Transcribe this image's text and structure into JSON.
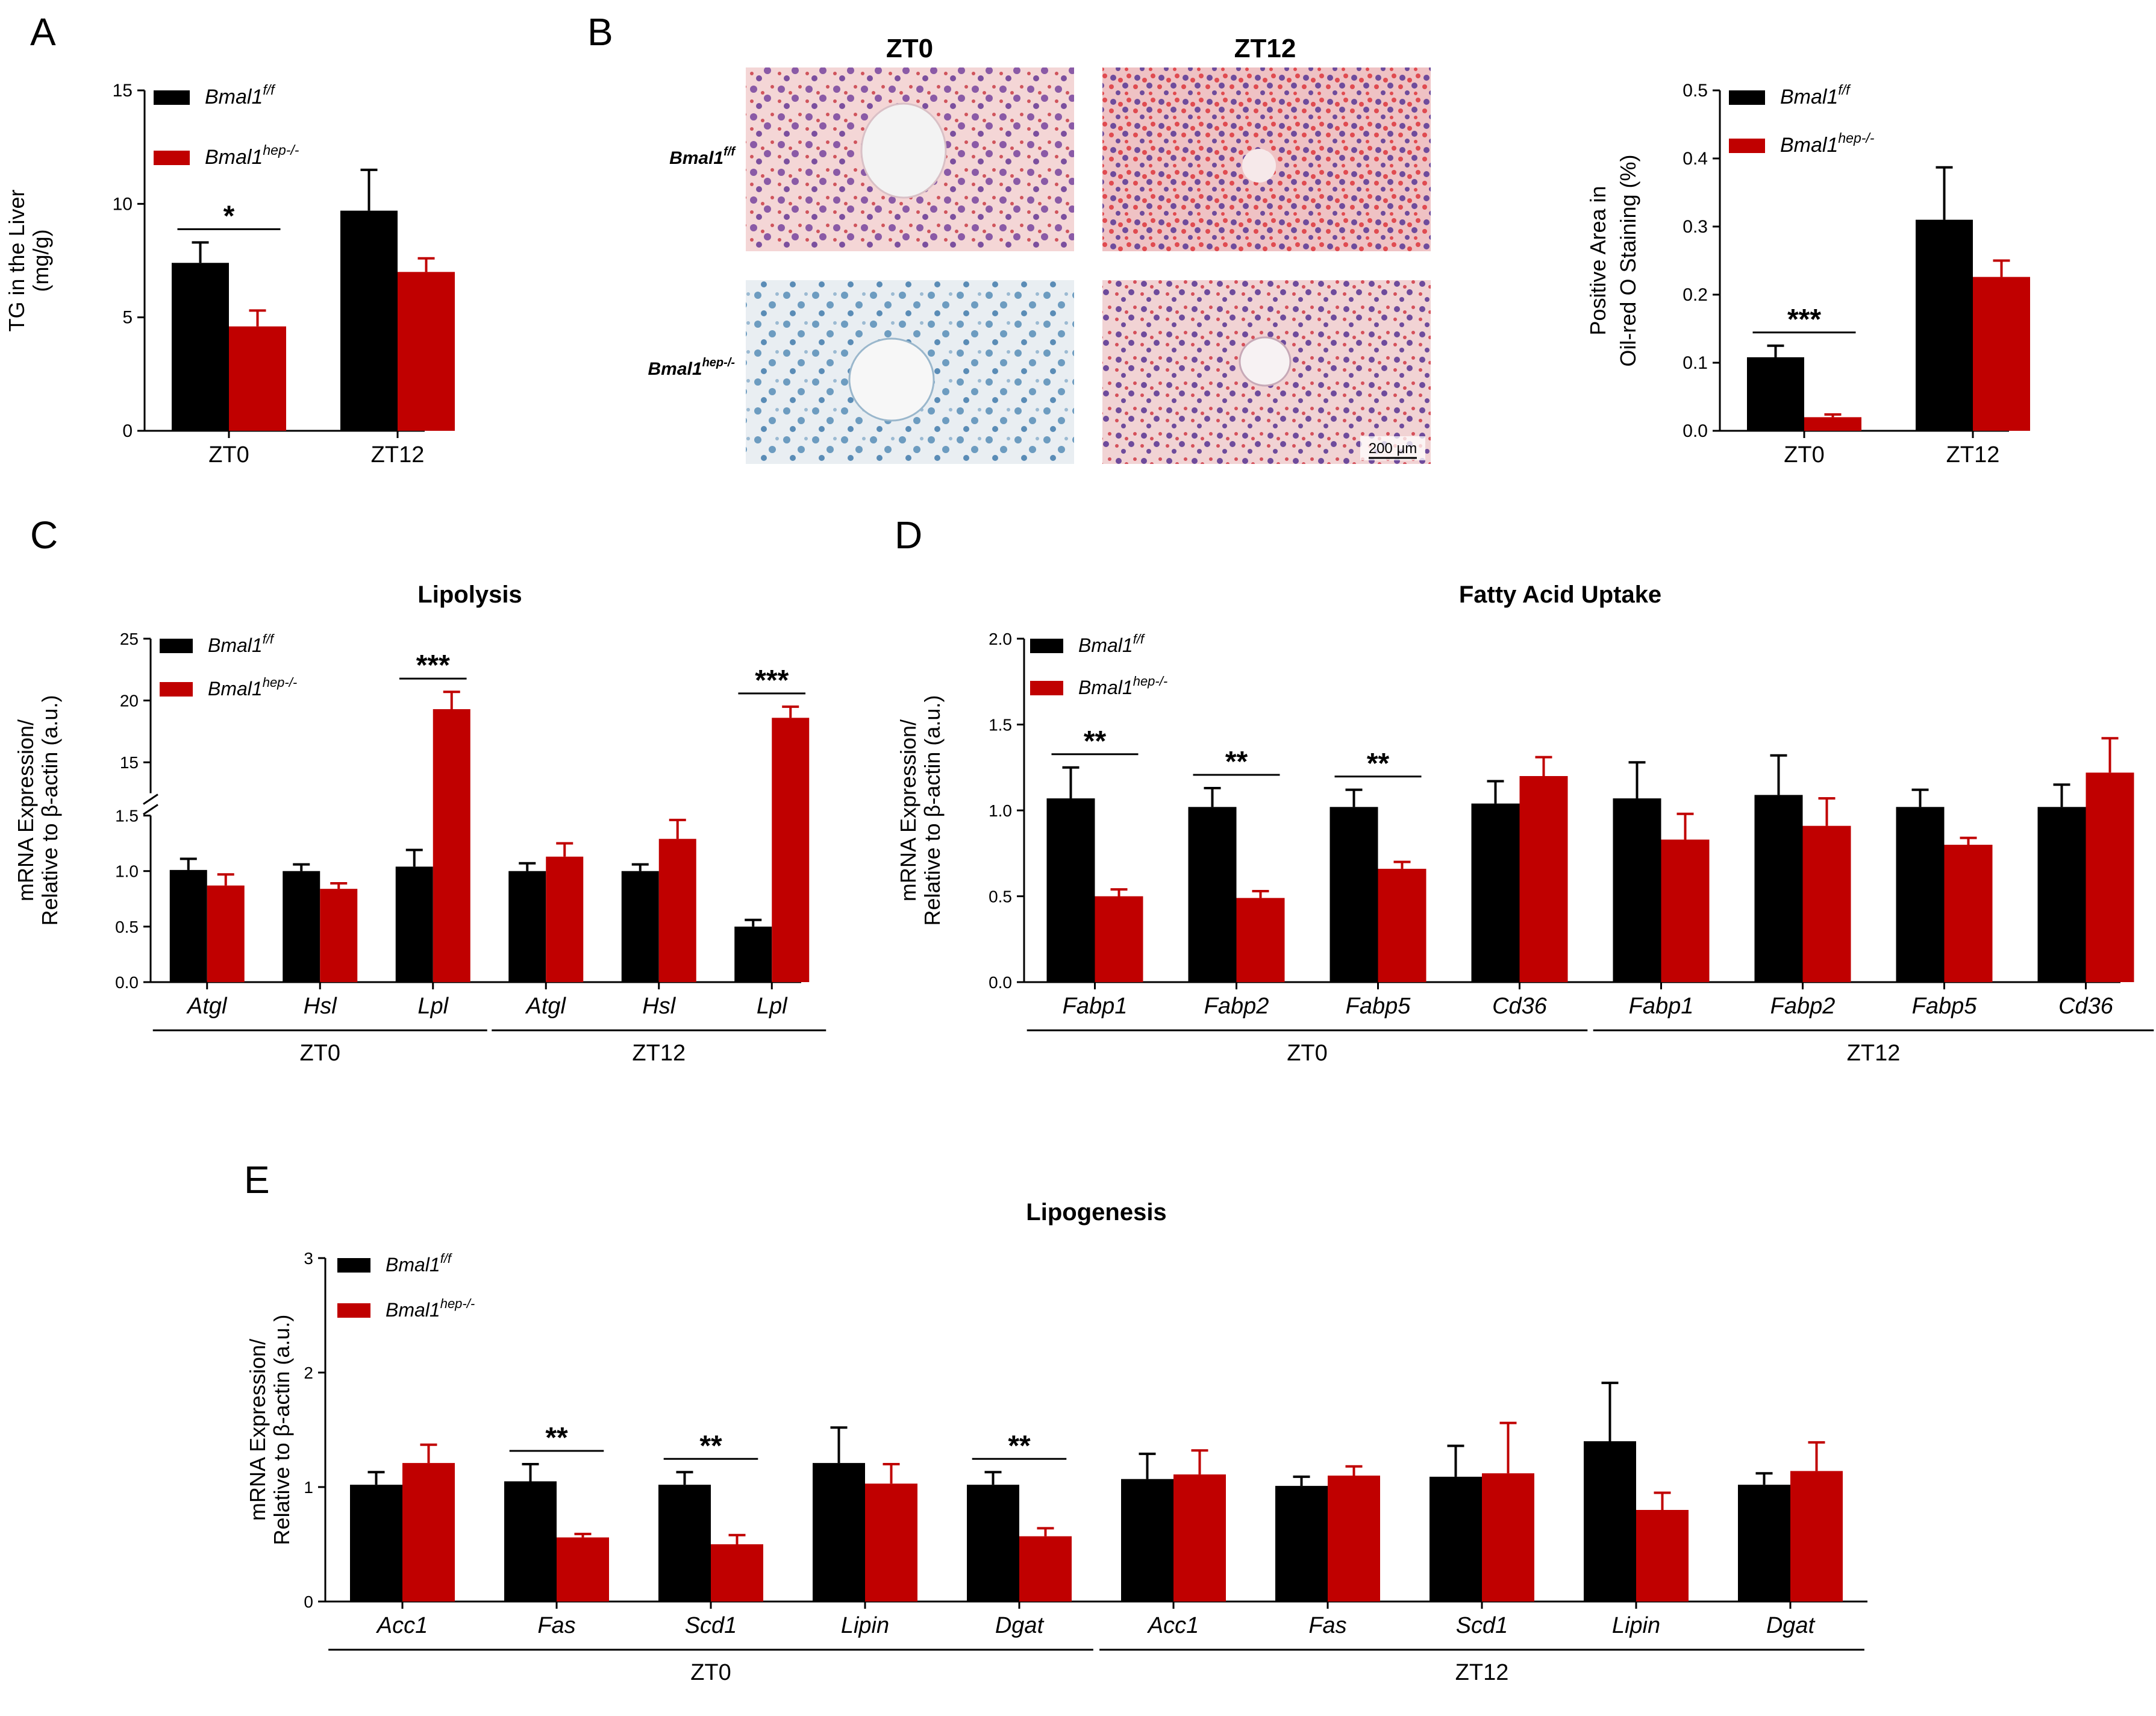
{
  "colors": {
    "control": "#000000",
    "knockout": "#c00000"
  },
  "legend": {
    "ctrl_base": "Bmal1",
    "ctrl_sup": "f/f",
    "ko_base": "Bmal1",
    "ko_sup": "hep-/-"
  },
  "chart_data": [
    {
      "id": "A",
      "type": "bar",
      "panel_label": "A",
      "title": "",
      "ylabel": [
        "TG in the Liver",
        "(mg/g)"
      ],
      "ylim": [
        0,
        15
      ],
      "yticks": [
        "0",
        "5",
        "10",
        "15"
      ],
      "categories": [
        "ZT0",
        "ZT12"
      ],
      "italic_categories": false,
      "series": [
        {
          "name": "Bmal1f/f",
          "values": [
            7.4,
            9.7
          ],
          "errors": [
            0.9,
            1.8
          ]
        },
        {
          "name": "Bmal1hep-/-",
          "values": [
            4.6,
            7.0
          ],
          "errors": [
            0.7,
            0.6
          ]
        }
      ],
      "significance": [
        {
          "category": 0,
          "label": "*"
        }
      ]
    },
    {
      "id": "B",
      "type": "bar",
      "panel_label": "B",
      "title": "",
      "ylabel": [
        "Positive Area in",
        "Oil-red O Staining (%)"
      ],
      "ylim": [
        0,
        0.5
      ],
      "yticks": [
        "0.0",
        "0.1",
        "0.2",
        "0.3",
        "0.4",
        "0.5"
      ],
      "categories": [
        "ZT0",
        "ZT12"
      ],
      "italic_categories": false,
      "series": [
        {
          "name": "Bmal1f/f",
          "values": [
            0.108,
            0.31
          ],
          "errors": [
            0.017,
            0.077
          ]
        },
        {
          "name": "Bmal1hep-/-",
          "values": [
            0.02,
            0.226
          ],
          "errors": [
            0.004,
            0.024
          ]
        }
      ],
      "significance": [
        {
          "category": 0,
          "label": "***"
        }
      ]
    },
    {
      "id": "C",
      "type": "bar",
      "panel_label": "C",
      "title": "Lipolysis",
      "ylabel": [
        "mRNA Expression/",
        "Relative to β-actin (a.u.)"
      ],
      "ylim": [
        0,
        25
      ],
      "axis_break": {
        "lower": [
          0,
          1.5
        ],
        "upper": [
          12.5,
          25
        ]
      },
      "yticks_lower": [
        "0.0",
        "0.5",
        "1.0",
        "1.5"
      ],
      "yticks_upper": [
        "15",
        "20",
        "25"
      ],
      "categories": [
        "Atgl",
        "Hsl",
        "Lpl",
        "Atgl",
        "Hsl",
        "Lpl"
      ],
      "italic_categories": true,
      "groups": [
        {
          "label": "ZT0",
          "from": 0,
          "to": 2
        },
        {
          "label": "ZT12",
          "from": 3,
          "to": 5
        }
      ],
      "series": [
        {
          "name": "Bmal1f/f",
          "values": [
            1.01,
            1.0,
            1.04,
            1.0,
            1.0,
            0.5
          ],
          "errors": [
            0.1,
            0.06,
            0.15,
            0.07,
            0.06,
            0.06
          ]
        },
        {
          "name": "Bmal1hep-/-",
          "values": [
            0.87,
            0.84,
            19.3,
            1.13,
            1.29,
            18.6
          ],
          "errors": [
            0.1,
            0.05,
            1.4,
            0.12,
            0.17,
            0.9
          ]
        }
      ],
      "significance": [
        {
          "category": 2,
          "label": "***"
        },
        {
          "category": 5,
          "label": "***"
        }
      ]
    },
    {
      "id": "D",
      "type": "bar",
      "panel_label": "D",
      "title": "Fatty Acid Uptake",
      "ylabel": [
        "mRNA Expression/",
        "Relative to β-actin (a.u.)"
      ],
      "ylim": [
        0,
        2.0
      ],
      "yticks": [
        "0.0",
        "0.5",
        "1.0",
        "1.5",
        "2.0"
      ],
      "categories": [
        "Fabp1",
        "Fabp2",
        "Fabp5",
        "Cd36",
        "Fabp1",
        "Fabp2",
        "Fabp5",
        "Cd36"
      ],
      "italic_categories": true,
      "groups": [
        {
          "label": "ZT0",
          "from": 0,
          "to": 3
        },
        {
          "label": "ZT12",
          "from": 4,
          "to": 7
        }
      ],
      "series": [
        {
          "name": "Bmal1f/f",
          "values": [
            1.07,
            1.02,
            1.02,
            1.04,
            1.07,
            1.09,
            1.02,
            1.02
          ],
          "errors": [
            0.18,
            0.11,
            0.1,
            0.13,
            0.21,
            0.23,
            0.1,
            0.13
          ]
        },
        {
          "name": "Bmal1hep-/-",
          "values": [
            0.5,
            0.49,
            0.66,
            1.2,
            0.83,
            0.91,
            0.8,
            1.22
          ],
          "errors": [
            0.04,
            0.04,
            0.04,
            0.11,
            0.15,
            0.16,
            0.04,
            0.2
          ]
        }
      ],
      "significance": [
        {
          "category": 0,
          "label": "**"
        },
        {
          "category": 1,
          "label": "**"
        },
        {
          "category": 2,
          "label": "**"
        }
      ]
    },
    {
      "id": "E",
      "type": "bar",
      "panel_label": "E",
      "title": "Lipogenesis",
      "ylabel": [
        "mRNA Expression/",
        "Relative to β-actin (a.u.)"
      ],
      "ylim": [
        0,
        3
      ],
      "yticks": [
        "0",
        "1",
        "2",
        "3"
      ],
      "categories": [
        "Acc1",
        "Fas",
        "Scd1",
        "Lipin",
        "Dgat",
        "Acc1",
        "Fas",
        "Scd1",
        "Lipin",
        "Dgat"
      ],
      "italic_categories": true,
      "groups": [
        {
          "label": "ZT0",
          "from": 0,
          "to": 4
        },
        {
          "label": "ZT12",
          "from": 5,
          "to": 9
        }
      ],
      "series": [
        {
          "name": "Bmal1f/f",
          "values": [
            1.02,
            1.05,
            1.02,
            1.21,
            1.02,
            1.07,
            1.01,
            1.09,
            1.4,
            1.02
          ],
          "errors": [
            0.11,
            0.15,
            0.11,
            0.31,
            0.11,
            0.22,
            0.08,
            0.27,
            0.51,
            0.1
          ]
        },
        {
          "name": "Bmal1hep-/-",
          "values": [
            1.21,
            0.56,
            0.5,
            1.03,
            0.57,
            1.11,
            1.1,
            1.12,
            0.8,
            1.14
          ],
          "errors": [
            0.16,
            0.03,
            0.08,
            0.17,
            0.07,
            0.21,
            0.08,
            0.44,
            0.15,
            0.25
          ]
        }
      ],
      "significance": [
        {
          "category": 1,
          "label": "**"
        },
        {
          "category": 2,
          "label": "**"
        },
        {
          "category": 4,
          "label": "**"
        }
      ]
    }
  ],
  "micrographs": {
    "panel_label": "B",
    "col_labels": [
      "ZT0",
      "ZT12"
    ],
    "row_labels": [
      {
        "base": "Bmal1",
        "sup": "f/f"
      },
      {
        "base": "Bmal1",
        "sup": "hep-/-"
      }
    ],
    "scale_bar": "200 μm"
  }
}
